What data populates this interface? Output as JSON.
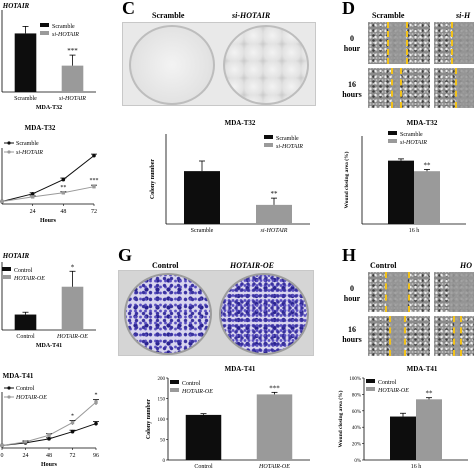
{
  "panels": {
    "c": {
      "letter": "C",
      "label_left": "Scramble",
      "label_right": "si-HOTAIR"
    },
    "d": {
      "letter": "D",
      "label_left": "Scramble",
      "label_right": "si-H",
      "row1": "0\nhour",
      "row2": "16\nhours"
    },
    "g": {
      "letter": "G",
      "label_left": "Control",
      "label_right": "HOTAIR-OE"
    },
    "h": {
      "letter": "H",
      "label_left": "Control",
      "label_right": "HO",
      "row1": "0\nhour",
      "row2": "16\nhours"
    }
  },
  "colors": {
    "dark_bar": "#0d0d0d",
    "light_bar": "#9a9a9a",
    "scratch_line": "#f2c21a",
    "colony_stain": "#3a32a0"
  },
  "chart_data": [
    {
      "id": "a1",
      "type": "bar",
      "title": "HOTAIR",
      "caption": "MDA-T32",
      "categories": [
        "Scramble",
        "si-HOTAIR"
      ],
      "values": [
        1.0,
        0.45
      ],
      "errors": [
        0.12,
        0.18
      ],
      "annotations": [
        "",
        "***"
      ],
      "legend": [
        "Scramble",
        "si-HOTAIR"
      ],
      "legend_position": "top-right",
      "ylim": [
        0,
        1.4
      ]
    },
    {
      "id": "a2",
      "type": "line",
      "title": "MDA-T32",
      "xlabel": "Hours",
      "x": [
        0,
        24,
        48,
        72
      ],
      "x_ticks": [
        "24",
        "48",
        "72"
      ],
      "ylim": [
        0,
        1.1
      ],
      "series": [
        {
          "name": "Scramble",
          "values": [
            0.05,
            0.2,
            0.48,
            0.95
          ],
          "errors": [
            0,
            0.02,
            0.03,
            0.03
          ],
          "annotations": [
            "",
            "",
            "",
            ""
          ]
        },
        {
          "name": "si-HOTAIR",
          "values": [
            0.05,
            0.14,
            0.22,
            0.34
          ],
          "errors": [
            0,
            0.02,
            0.02,
            0.03
          ],
          "annotations": [
            "",
            "",
            "**",
            "***"
          ]
        }
      ],
      "legend_position": "top-left"
    },
    {
      "id": "c",
      "type": "bar",
      "title": "MDA-T32",
      "ylabel": "Colony number",
      "categories": [
        "Scramble",
        "si-HOTAIR"
      ],
      "values": [
        47,
        17
      ],
      "errors": [
        9,
        6
      ],
      "annotations": [
        "",
        "**"
      ],
      "legend": [
        "Scramble",
        "si-HOTAIR"
      ],
      "legend_position": "top-right",
      "ylim": [
        0,
        80
      ]
    },
    {
      "id": "d",
      "type": "bar",
      "title": "MDA-T32",
      "ylabel": "Wound closing area (%)",
      "categories": [
        "16 h"
      ],
      "series": [
        {
          "name": "Scramble",
          "values": [
            72
          ],
          "errors": [
            2
          ]
        },
        {
          "name": "si-HOTAIR",
          "values": [
            60
          ],
          "errors": [
            2
          ]
        }
      ],
      "annotations": [
        "",
        "**"
      ],
      "legend_position": "top-left",
      "ylim": [
        0,
        100
      ]
    },
    {
      "id": "e1",
      "type": "bar",
      "title": "HOTAIR",
      "caption": "MDA-T41",
      "categories": [
        "Control",
        "HOTAIR-OE"
      ],
      "values": [
        1.0,
        2.8
      ],
      "errors": [
        0.15,
        1.0
      ],
      "annotations": [
        "",
        "*"
      ],
      "legend": [
        "Control",
        "HOTAIR-OE"
      ],
      "legend_position": "top-left",
      "ylim": [
        0,
        4.4
      ]
    },
    {
      "id": "e2",
      "type": "line",
      "title": "MDA-T41",
      "xlabel": "Hours",
      "x": [
        0,
        24,
        48,
        72,
        96
      ],
      "x_ticks": [
        "0",
        "24",
        "48",
        "72",
        "96"
      ],
      "ylim": [
        0,
        1.1
      ],
      "series": [
        {
          "name": "Control",
          "values": [
            0.05,
            0.1,
            0.18,
            0.32,
            0.48
          ],
          "errors": [
            0,
            0.02,
            0.02,
            0.03,
            0.04
          ],
          "annotations": [
            "",
            "",
            "",
            "",
            ""
          ]
        },
        {
          "name": "HOTAIR-OE",
          "values": [
            0.05,
            0.12,
            0.25,
            0.5,
            0.9
          ],
          "errors": [
            0,
            0.02,
            0.03,
            0.04,
            0.05
          ],
          "annotations": [
            "",
            "",
            "",
            "*",
            "*"
          ]
        }
      ],
      "legend_position": "top-left"
    },
    {
      "id": "g",
      "type": "bar",
      "title": "MDA-T41",
      "ylabel": "Colony number",
      "categories": [
        "Control",
        "HOTAIR-OE"
      ],
      "values": [
        110,
        160
      ],
      "errors": [
        3,
        5
      ],
      "annotations": [
        "",
        "***"
      ],
      "legend": [
        "Control",
        "HOTAIR-OE"
      ],
      "legend_position": "top-left",
      "ylim": [
        0,
        200
      ],
      "yticks": [
        "0",
        "50",
        "100",
        "150",
        "200"
      ]
    },
    {
      "id": "h",
      "type": "bar",
      "title": "MDA-T41",
      "ylabel": "Wound closing area (%)",
      "categories": [
        "16 h"
      ],
      "series": [
        {
          "name": "Control",
          "values": [
            53
          ],
          "errors": [
            4
          ]
        },
        {
          "name": "HOTAIR-OE",
          "values": [
            74
          ],
          "errors": [
            2
          ]
        }
      ],
      "annotations": [
        "",
        "**"
      ],
      "legend_position": "top-left",
      "ylim": [
        0,
        100
      ],
      "yticks": [
        "0%",
        "20%",
        "40%",
        "60%",
        "80%",
        "100%"
      ]
    }
  ]
}
